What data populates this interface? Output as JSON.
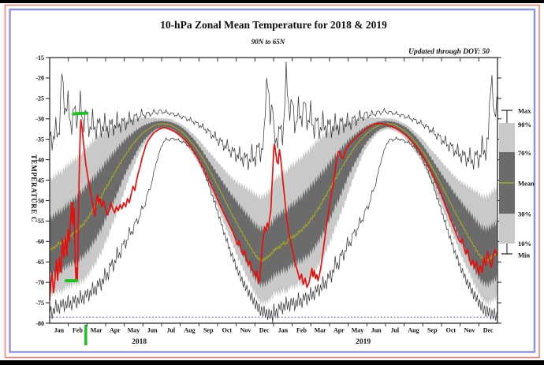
{
  "chart_data": {
    "type": "line",
    "title": "10-hPa Zonal Mean Temperature for 2018 & 2019",
    "region_subtitle": "90N to 65N",
    "updated_note": "Updated through DOY:  50",
    "ylabel": "TEMPERATURE C",
    "ylim": [
      -80,
      -15
    ],
    "y_ticks": [
      "-15",
      "-20",
      "-25",
      "-30",
      "-35",
      "-40",
      "-45",
      "-50",
      "-55",
      "-60",
      "-65",
      "-70",
      "-75",
      "-80"
    ],
    "months": [
      "Jan",
      "Feb",
      "Mar",
      "Apr",
      "May",
      "Jun",
      "Jul",
      "Aug",
      "Sep",
      "Oct",
      "Nov",
      "Dec"
    ],
    "years": [
      "2018",
      "2019"
    ],
    "grid": false,
    "legend_position": "right",
    "climatology_doy_step": 5,
    "climatology": {
      "max": [
        -33,
        -37,
        -31,
        -36,
        -17.5,
        -30,
        -24.5,
        -34,
        -26,
        -32,
        -24.5,
        -33,
        -27,
        -34.5,
        -29,
        -34.5,
        -29.5,
        -34,
        -30,
        -34,
        -30,
        -33.5,
        -29.5,
        -33,
        -29.5,
        -32.5,
        -29,
        -31.5,
        -28.5,
        -30.5,
        -28,
        -29.8,
        -28.2,
        -29.4,
        -27.9,
        -29,
        -27.6,
        -28.8,
        -28,
        -29,
        -28.4,
        -29.4,
        -28.8,
        -29.9,
        -29.3,
        -30.5,
        -29.9,
        -31.2,
        -30.6,
        -32.1,
        -31.5,
        -33.3,
        -32.5,
        -34.8,
        -33.6,
        -36.2,
        -34.8,
        -37.6,
        -35.8,
        -39,
        -37,
        -40.2,
        -37.8,
        -41.2,
        -38.2,
        -42,
        -37.5,
        -41.5,
        -35.5,
        -40,
        -33.5,
        -18.5,
        -30,
        -25
      ],
      "p90": [
        -45,
        -44.3,
        -43.9,
        -42.8,
        -43.1,
        -41.7,
        -41.2,
        -40.8,
        -39.9,
        -39.6,
        -38.5,
        -38.2,
        -37,
        -36.5,
        -35.3,
        -35,
        -34,
        -33.8,
        -32.9,
        -32.6,
        -32,
        -31.9,
        -31.3,
        -31.2,
        -30.6,
        -30.7,
        -30.1,
        -30.2,
        -29.8,
        -30,
        -29.6,
        -29.8,
        -29.6,
        -29.9,
        -29.6,
        -29.9,
        -29.8,
        -29.9,
        -29.9,
        -30,
        -30.2,
        -30.6,
        -30.9,
        -31.3,
        -31.8,
        -32.4,
        -33.2,
        -33.8,
        -34.6,
        -35.3,
        -36.3,
        -37.3,
        -38.1,
        -38.9,
        -39.8,
        -40.7,
        -41.6,
        -42.4,
        -43.3,
        -44,
        -44.8,
        -45.4,
        -45.9,
        -46.3,
        -46.8,
        -47.4,
        -47.7,
        -48.4,
        -48.8,
        -49.1,
        -48.7,
        -48.1,
        -47.3,
        -46.4
      ],
      "p70": [
        -54.5,
        -53.9,
        -53.4,
        -52.5,
        -52.6,
        -51.5,
        -50.9,
        -50.5,
        -49.5,
        -49.2,
        -48,
        -47.5,
        -46.3,
        -45.7,
        -44.6,
        -44,
        -42.8,
        -42.2,
        -40.9,
        -40.1,
        -39,
        -38.3,
        -37.2,
        -36.5,
        -35.5,
        -34.9,
        -34.1,
        -33.6,
        -32.9,
        -32.4,
        -31.9,
        -31.5,
        -31.2,
        -30.9,
        -30.7,
        -30.6,
        -30.5,
        -30.5,
        -30.6,
        -30.7,
        -30.9,
        -31.2,
        -31.6,
        -32,
        -32.6,
        -33.3,
        -34.1,
        -34.9,
        -35.9,
        -36.9,
        -38,
        -39.2,
        -40.3,
        -41.5,
        -42.6,
        -43.8,
        -44.9,
        -46,
        -47.1,
        -48.2,
        -49.2,
        -50.2,
        -51.2,
        -52.1,
        -53,
        -53.9,
        -54.9,
        -55.8,
        -56.5,
        -56.9,
        -56.7,
        -56.3,
        -55.8,
        -55.2
      ],
      "mean": [
        -62.2,
        -61.6,
        -61.3,
        -60.3,
        -60.6,
        -59.4,
        -58.9,
        -58.7,
        -57.7,
        -57.4,
        -56.3,
        -55.9,
        -54.6,
        -53.8,
        -52.4,
        -51.5,
        -49.9,
        -48.9,
        -47.3,
        -46.2,
        -44.7,
        -43.6,
        -42.1,
        -41,
        -39.6,
        -38.6,
        -37.3,
        -36.4,
        -35.4,
        -34.6,
        -33.8,
        -33.1,
        -32.6,
        -32.1,
        -31.7,
        -31.4,
        -31.3,
        -31.2,
        -31.3,
        -31.4,
        -31.7,
        -32.1,
        -32.6,
        -33.1,
        -33.8,
        -34.6,
        -35.5,
        -36.4,
        -37.4,
        -38.5,
        -39.7,
        -41,
        -42.3,
        -43.7,
        -45.1,
        -46.6,
        -48.1,
        -49.6,
        -51.1,
        -52.6,
        -54,
        -55.4,
        -56.8,
        -58.1,
        -59.4,
        -60.7,
        -62,
        -63.2,
        -64.1,
        -64.6,
        -64.4,
        -63.9,
        -63.3,
        -62.6
      ],
      "p30": [
        -68.2,
        -68,
        -67.6,
        -66.9,
        -67.3,
        -66.2,
        -65.8,
        -65.6,
        -64.8,
        -64.9,
        -64,
        -63.8,
        -62.6,
        -61.9,
        -60.5,
        -59.6,
        -57.9,
        -56.9,
        -54.8,
        -53.4,
        -51.5,
        -50.1,
        -48.3,
        -46.6,
        -44.5,
        -43,
        -41.4,
        -40,
        -38.7,
        -37.2,
        -36.1,
        -35,
        -34.3,
        -33.5,
        -32.9,
        -32.4,
        -32.2,
        -32,
        -32.1,
        -32.2,
        -32.5,
        -32.9,
        -33.5,
        -34.1,
        -34.9,
        -35.8,
        -36.9,
        -37.9,
        -39,
        -40.2,
        -41.5,
        -43,
        -44.7,
        -46.4,
        -48.1,
        -49.6,
        -51.6,
        -53.2,
        -54.9,
        -56.5,
        -58.1,
        -60,
        -61.5,
        -63.1,
        -64.6,
        -66.1,
        -67.7,
        -69,
        -69.9,
        -70.6,
        -70.5,
        -70,
        -69.4,
        -68.6
      ],
      "p10": [
        -72.7,
        -72.8,
        -72.7,
        -71.9,
        -72.6,
        -71.4,
        -71.1,
        -71.2,
        -70.2,
        -70.9,
        -69.8,
        -69.9,
        -68.6,
        -67.8,
        -66.4,
        -65.5,
        -63.7,
        -62.6,
        -60.6,
        -58.9,
        -56.7,
        -54.9,
        -52.8,
        -51,
        -48.6,
        -46.6,
        -44.4,
        -42.5,
        -40.7,
        -38.8,
        -37.4,
        -36.1,
        -35.1,
        -34.2,
        -33.5,
        -33,
        -32.7,
        -32.5,
        -32.6,
        -32.8,
        -33.1,
        -33.6,
        -34.2,
        -34.9,
        -35.8,
        -36.8,
        -37.9,
        -39,
        -40.2,
        -41.6,
        -43.1,
        -44.8,
        -46.4,
        -48.2,
        -50,
        -51.9,
        -53.9,
        -55.7,
        -57.6,
        -59.4,
        -61.2,
        -63.2,
        -64.9,
        -66.5,
        -68.1,
        -69.8,
        -71.4,
        -72.8,
        -74,
        -75.1,
        -75.1,
        -74.8,
        -74.2,
        -73.4
      ],
      "min": [
        -76.5,
        -78,
        -75.5,
        -76.8,
        -74.8,
        -76.2,
        -74.4,
        -76,
        -73.8,
        -75.4,
        -73.2,
        -74.6,
        -72.4,
        -73.6,
        -71.2,
        -72.4,
        -69.8,
        -71,
        -67.8,
        -69,
        -64.8,
        -66.6,
        -62.4,
        -64,
        -59.8,
        -61.2,
        -57.2,
        -58.4,
        -54.6,
        -55.4,
        -51.6,
        -51.8,
        -47.8,
        -47,
        -43,
        -40.4,
        -37.6,
        -36,
        -34.8,
        -35.4,
        -34.6,
        -35.2,
        -35,
        -35.8,
        -35.6,
        -36.6,
        -36.9,
        -38.2,
        -38.9,
        -40.8,
        -42,
        -44.4,
        -46,
        -48.8,
        -50.6,
        -53.4,
        -55.4,
        -58.2,
        -60,
        -62.6,
        -64.2,
        -66.6,
        -68,
        -70,
        -71,
        -72.8,
        -73.6,
        -75.2,
        -76,
        -77.2,
        -77,
        -78,
        -77.6,
        -78.8
      ]
    },
    "observed": [
      [
        1,
        -74.5
      ],
      [
        3,
        -70
      ],
      [
        5,
        -67.5
      ],
      [
        7,
        -72.5
      ],
      [
        9,
        -70.5
      ],
      [
        12,
        -64.5
      ],
      [
        14,
        -69.5
      ],
      [
        17,
        -64
      ],
      [
        19,
        -67.5
      ],
      [
        22,
        -59.5
      ],
      [
        24,
        -64
      ],
      [
        27,
        -59
      ],
      [
        29,
        -63.5
      ],
      [
        31,
        -57
      ],
      [
        33,
        -60
      ],
      [
        35,
        -55
      ],
      [
        37,
        -50.5
      ],
      [
        38,
        -55.5
      ],
      [
        39,
        -50.5
      ],
      [
        40,
        -56
      ],
      [
        41,
        -52
      ],
      [
        42,
        -60
      ],
      [
        43,
        -66
      ],
      [
        44,
        -69.5
      ],
      [
        45,
        -66.5
      ],
      [
        46,
        -69.8
      ],
      [
        47,
        -64
      ],
      [
        48,
        -54
      ],
      [
        49,
        -45
      ],
      [
        50,
        -38
      ],
      [
        51,
        -33
      ],
      [
        52,
        -30.2
      ],
      [
        54,
        -32.5
      ],
      [
        56,
        -35.5
      ],
      [
        58,
        -38.5
      ],
      [
        60,
        -41
      ],
      [
        63,
        -44
      ],
      [
        66,
        -46.5
      ],
      [
        69,
        -49
      ],
      [
        72,
        -51.5
      ],
      [
        75,
        -53.8
      ],
      [
        77,
        -50.5
      ],
      [
        79,
        -48.5
      ],
      [
        81,
        -50.5
      ],
      [
        83,
        -49.5
      ],
      [
        86,
        -51.5
      ],
      [
        89,
        -50
      ],
      [
        92,
        -52
      ],
      [
        95,
        -53.5
      ],
      [
        98,
        -52.5
      ],
      [
        101,
        -50.5
      ],
      [
        104,
        -52
      ],
      [
        107,
        -53
      ],
      [
        110,
        -51.5
      ],
      [
        113,
        -52.5
      ],
      [
        116,
        -51
      ],
      [
        119,
        -52
      ],
      [
        122,
        -50.5
      ],
      [
        125,
        -51.5
      ],
      [
        128,
        -49.5
      ],
      [
        131,
        -50.5
      ],
      [
        134,
        -48.5
      ],
      [
        137,
        -46.5
      ],
      [
        140,
        -47.5
      ],
      [
        143,
        -45
      ],
      [
        146,
        -43
      ],
      [
        149,
        -41.5
      ],
      [
        152,
        -39.5
      ],
      [
        155,
        -38
      ],
      [
        158,
        -36.5
      ],
      [
        161,
        -35.5
      ],
      [
        164,
        -34.8
      ],
      [
        167,
        -34.2
      ],
      [
        170,
        -33.6
      ],
      [
        173,
        -33.2
      ],
      [
        176,
        -32.9
      ],
      [
        179,
        -32.6
      ],
      [
        183,
        -32.3
      ],
      [
        187,
        -32.1
      ],
      [
        191,
        -32.2
      ],
      [
        195,
        -32.4
      ],
      [
        200,
        -32.7
      ],
      [
        205,
        -33.1
      ],
      [
        210,
        -33.6
      ],
      [
        215,
        -34.2
      ],
      [
        220,
        -34.9
      ],
      [
        225,
        -35.7
      ],
      [
        230,
        -36.6
      ],
      [
        235,
        -37.7
      ],
      [
        240,
        -38.9
      ],
      [
        245,
        -40.2
      ],
      [
        250,
        -41.6
      ],
      [
        255,
        -43.1
      ],
      [
        260,
        -44.7
      ],
      [
        265,
        -46.3
      ],
      [
        270,
        -48
      ],
      [
        275,
        -49.7
      ],
      [
        280,
        -51.4
      ],
      [
        285,
        -53
      ],
      [
        290,
        -54.6
      ],
      [
        295,
        -56.1
      ],
      [
        300,
        -57.6
      ],
      [
        304,
        -59.2
      ],
      [
        307,
        -60.8
      ],
      [
        310,
        -59.8
      ],
      [
        313,
        -61.8
      ],
      [
        316,
        -63.2
      ],
      [
        319,
        -62.2
      ],
      [
        322,
        -64.2
      ],
      [
        325,
        -65.8
      ],
      [
        328,
        -64.8
      ],
      [
        331,
        -66.8
      ],
      [
        334,
        -67.2
      ],
      [
        337,
        -68.6
      ],
      [
        339,
        -67.2
      ],
      [
        342,
        -70.2
      ],
      [
        344,
        -69
      ],
      [
        346,
        -65
      ],
      [
        348,
        -61
      ],
      [
        350,
        -58.5
      ],
      [
        352,
        -56.5
      ],
      [
        354,
        -57.5
      ],
      [
        356,
        -55.5
      ],
      [
        358,
        -56.5
      ],
      [
        360,
        -54.5
      ],
      [
        362,
        -52.5
      ],
      [
        364,
        -46
      ],
      [
        366,
        -40
      ],
      [
        367,
        -37
      ],
      [
        368,
        -36.2
      ],
      [
        370,
        -38.3
      ],
      [
        372,
        -40.5
      ],
      [
        374,
        -41
      ],
      [
        376,
        -37.5
      ],
      [
        378,
        -39.5
      ],
      [
        380,
        -42.5
      ],
      [
        382,
        -45.5
      ],
      [
        384,
        -48.5
      ],
      [
        386,
        -51.5
      ],
      [
        388,
        -54.5
      ],
      [
        391,
        -57.5
      ],
      [
        394,
        -60
      ],
      [
        397,
        -62
      ],
      [
        400,
        -64
      ],
      [
        403,
        -66
      ],
      [
        406,
        -67.5
      ],
      [
        409,
        -69.3
      ],
      [
        412,
        -68
      ],
      [
        415,
        -70.5
      ],
      [
        418,
        -69
      ],
      [
        421,
        -71.2
      ],
      [
        424,
        -70.2
      ],
      [
        427,
        -68.2
      ],
      [
        429,
        -66.6
      ],
      [
        431,
        -68.6
      ],
      [
        433,
        -67.1
      ],
      [
        435,
        -69.1
      ],
      [
        437,
        -68.1
      ],
      [
        439,
        -69.6
      ],
      [
        441,
        -68.4
      ],
      [
        443,
        -67
      ],
      [
        446,
        -64
      ],
      [
        449,
        -60.5
      ],
      [
        452,
        -57
      ],
      [
        455,
        -54
      ],
      [
        458,
        -51
      ],
      [
        461,
        -48.5
      ],
      [
        464,
        -46
      ],
      [
        467,
        -42.5
      ],
      [
        470,
        -39.5
      ],
      [
        472,
        -38.2
      ],
      [
        474,
        -37.9
      ],
      [
        477,
        -39.4
      ],
      [
        480,
        -39.7
      ],
      [
        483,
        -38.2
      ],
      [
        486,
        -37.1
      ],
      [
        490,
        -36.3
      ],
      [
        494,
        -35.6
      ],
      [
        498,
        -35
      ],
      [
        503,
        -34.3
      ],
      [
        508,
        -33.6
      ],
      [
        513,
        -33
      ],
      [
        518,
        -32.4
      ],
      [
        523,
        -31.9
      ],
      [
        528,
        -31.5
      ],
      [
        533,
        -31.2
      ],
      [
        538,
        -31.1
      ],
      [
        543,
        -31.2
      ],
      [
        548,
        -31.3
      ],
      [
        553,
        -31.5
      ],
      [
        558,
        -31.8
      ],
      [
        563,
        -32.1
      ],
      [
        568,
        -32.5
      ],
      [
        573,
        -33
      ],
      [
        578,
        -33.5
      ],
      [
        583,
        -34.1
      ],
      [
        588,
        -34.8
      ],
      [
        593,
        -35.6
      ],
      [
        598,
        -36.5
      ],
      [
        603,
        -37.5
      ],
      [
        608,
        -38.6
      ],
      [
        613,
        -39.9
      ],
      [
        618,
        -41.2
      ],
      [
        623,
        -42.7
      ],
      [
        628,
        -44.2
      ],
      [
        633,
        -45.9
      ],
      [
        638,
        -47.7
      ],
      [
        643,
        -49.6
      ],
      [
        648,
        -51.6
      ],
      [
        653,
        -53.6
      ],
      [
        658,
        -55.6
      ],
      [
        663,
        -57.5
      ],
      [
        668,
        -59.3
      ],
      [
        671,
        -60.2
      ],
      [
        674,
        -59.2
      ],
      [
        677,
        -61.3
      ],
      [
        680,
        -63
      ],
      [
        683,
        -62
      ],
      [
        686,
        -64.3
      ],
      [
        689,
        -65.8
      ],
      [
        692,
        -64.6
      ],
      [
        695,
        -66.4
      ],
      [
        698,
        -64.9
      ],
      [
        701,
        -68
      ],
      [
        704,
        -65.9
      ],
      [
        707,
        -67.6
      ],
      [
        710,
        -63.9
      ],
      [
        713,
        -65.8
      ],
      [
        716,
        -62.5
      ],
      [
        719,
        -64.6
      ],
      [
        722,
        -66.4
      ],
      [
        725,
        -63.4
      ],
      [
        728,
        -62
      ],
      [
        731,
        -63.3
      ]
    ],
    "annotations": {
      "record_high_dash": {
        "doy_start": 40,
        "doy_end": 62,
        "temp": -28.8
      },
      "record_low_dash": {
        "doy_start": 28,
        "doy_end": 45,
        "temp": -69.6
      },
      "event_marker_doy": 60,
      "dotted_reference_temp": -78.5
    }
  },
  "legend": {
    "items": [
      "Max",
      "90%",
      "70%",
      "Mean",
      "30%",
      "10%",
      "Min"
    ]
  },
  "colors": {
    "band_light": "#c9c9c9",
    "band_dark": "#6b6b6b",
    "mean_line": "#a8a820",
    "observed_line": "#e8100c",
    "extreme_line": "#2f2f2f",
    "marker_green": "#1ec41e",
    "dotted_reference": "#3a3ad6",
    "frame_red": "#ef8277",
    "frame_blue": "#8e8ee6",
    "axis": "#1a1a1a"
  }
}
